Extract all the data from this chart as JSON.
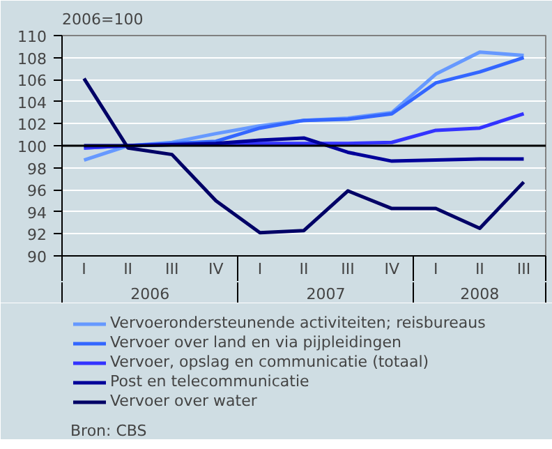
{
  "chart_data": {
    "type": "line",
    "ylabel": "2006=100",
    "categories": [
      "I",
      "II",
      "III",
      "IV",
      "I",
      "II",
      "III",
      "IV",
      "I",
      "II",
      "III"
    ],
    "series": [
      {
        "name": "Vervoerondersteunende activiteiten; reisbureaus",
        "color": "#6699ff",
        "values": [
          98.7,
          100.0,
          100.3,
          101.1,
          101.8,
          102.3,
          102.5,
          103.0,
          106.5,
          108.5,
          108.2
        ]
      },
      {
        "name": "Vervoer over land en via pijpleidingen",
        "color": "#3366ff",
        "values": [
          99.8,
          100.0,
          100.2,
          100.4,
          101.6,
          102.3,
          102.4,
          102.9,
          105.7,
          106.7,
          108.0
        ]
      },
      {
        "name": "Vervoer, opslag en communicatie (totaal)",
        "color": "#3333ff",
        "values": [
          99.8,
          100.0,
          100.1,
          100.1,
          100.2,
          100.2,
          100.2,
          100.3,
          101.4,
          101.6,
          102.9
        ]
      },
      {
        "name": "Post en telecommunicatie",
        "color": "#000099",
        "values": [
          100.0,
          100.0,
          100.1,
          100.2,
          100.5,
          100.7,
          99.4,
          98.6,
          98.7,
          98.8,
          98.8
        ]
      },
      {
        "name": "Vervoer over water",
        "color": "#000066",
        "values": [
          106.1,
          99.8,
          99.2,
          95.0,
          92.1,
          92.3,
          95.9,
          94.3,
          94.3,
          92.5,
          96.7
        ]
      }
    ],
    "ylim": [
      90,
      110
    ],
    "yticks": [
      90,
      92,
      94,
      96,
      98,
      100,
      102,
      104,
      106,
      108,
      110
    ],
    "grid": "y",
    "legend": "bottom",
    "ref_lines": [
      {
        "axis": "y",
        "value": 100,
        "color": "#000000"
      }
    ],
    "annotations": [
      "2006",
      "2007",
      "2008",
      "Bron: CBS"
    ]
  }
}
